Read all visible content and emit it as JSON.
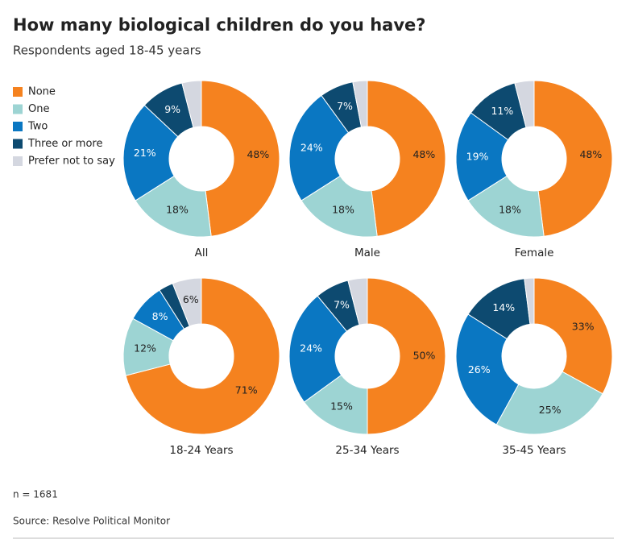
{
  "title": "How many biological children do you have?",
  "subtitle": "Respondents aged 18-45 years",
  "note": "n = 1681",
  "source": "Source: Resolve Political Monitor",
  "chart_data": [
    {
      "type": "pie",
      "title": "All",
      "categories": [
        "None",
        "One",
        "Two",
        "Three or more",
        "Prefer not to say"
      ],
      "colors": [
        "#f5821f",
        "#9dd4d3",
        "#0a77c2",
        "#0d4a70",
        "#d4d7e0"
      ],
      "values": [
        48,
        18,
        21,
        9,
        4
      ],
      "value_labels": [
        "48%",
        "18%",
        "21%",
        "9%",
        null
      ]
    },
    {
      "type": "pie",
      "title": "Male",
      "categories": [
        "None",
        "One",
        "Two",
        "Three or more",
        "Prefer not to say"
      ],
      "colors": [
        "#f5821f",
        "#9dd4d3",
        "#0a77c2",
        "#0d4a70",
        "#d4d7e0"
      ],
      "values": [
        48,
        18,
        24,
        7,
        3
      ],
      "value_labels": [
        "48%",
        "18%",
        "24%",
        "7%",
        null
      ]
    },
    {
      "type": "pie",
      "title": "Female",
      "categories": [
        "None",
        "One",
        "Two",
        "Three or more",
        "Prefer not to say"
      ],
      "colors": [
        "#f5821f",
        "#9dd4d3",
        "#0a77c2",
        "#0d4a70",
        "#d4d7e0"
      ],
      "values": [
        48,
        18,
        19,
        11,
        4
      ],
      "value_labels": [
        "48%",
        "18%",
        "19%",
        "11%",
        null
      ]
    },
    {
      "type": "pie",
      "title": "18-24 Years",
      "categories": [
        "None",
        "One",
        "Two",
        "Three or more",
        "Prefer not to say"
      ],
      "colors": [
        "#f5821f",
        "#9dd4d3",
        "#0a77c2",
        "#0d4a70",
        "#d4d7e0"
      ],
      "values": [
        71,
        12,
        8,
        3,
        6
      ],
      "value_labels": [
        "71%",
        "12%",
        "8%",
        null,
        "6%"
      ]
    },
    {
      "type": "pie",
      "title": "25-34 Years",
      "categories": [
        "None",
        "One",
        "Two",
        "Three or more",
        "Prefer not to say"
      ],
      "colors": [
        "#f5821f",
        "#9dd4d3",
        "#0a77c2",
        "#0d4a70",
        "#d4d7e0"
      ],
      "values": [
        50,
        15,
        24,
        7,
        4
      ],
      "value_labels": [
        "50%",
        "15%",
        "24%",
        "7%",
        null
      ]
    },
    {
      "type": "pie",
      "title": "35-45 Years",
      "categories": [
        "None",
        "One",
        "Two",
        "Three or more",
        "Prefer not to say"
      ],
      "colors": [
        "#f5821f",
        "#9dd4d3",
        "#0a77c2",
        "#0d4a70",
        "#d4d7e0"
      ],
      "values": [
        33,
        25,
        26,
        14,
        2
      ],
      "value_labels": [
        "33%",
        "25%",
        "26%",
        "14%",
        null
      ]
    }
  ]
}
